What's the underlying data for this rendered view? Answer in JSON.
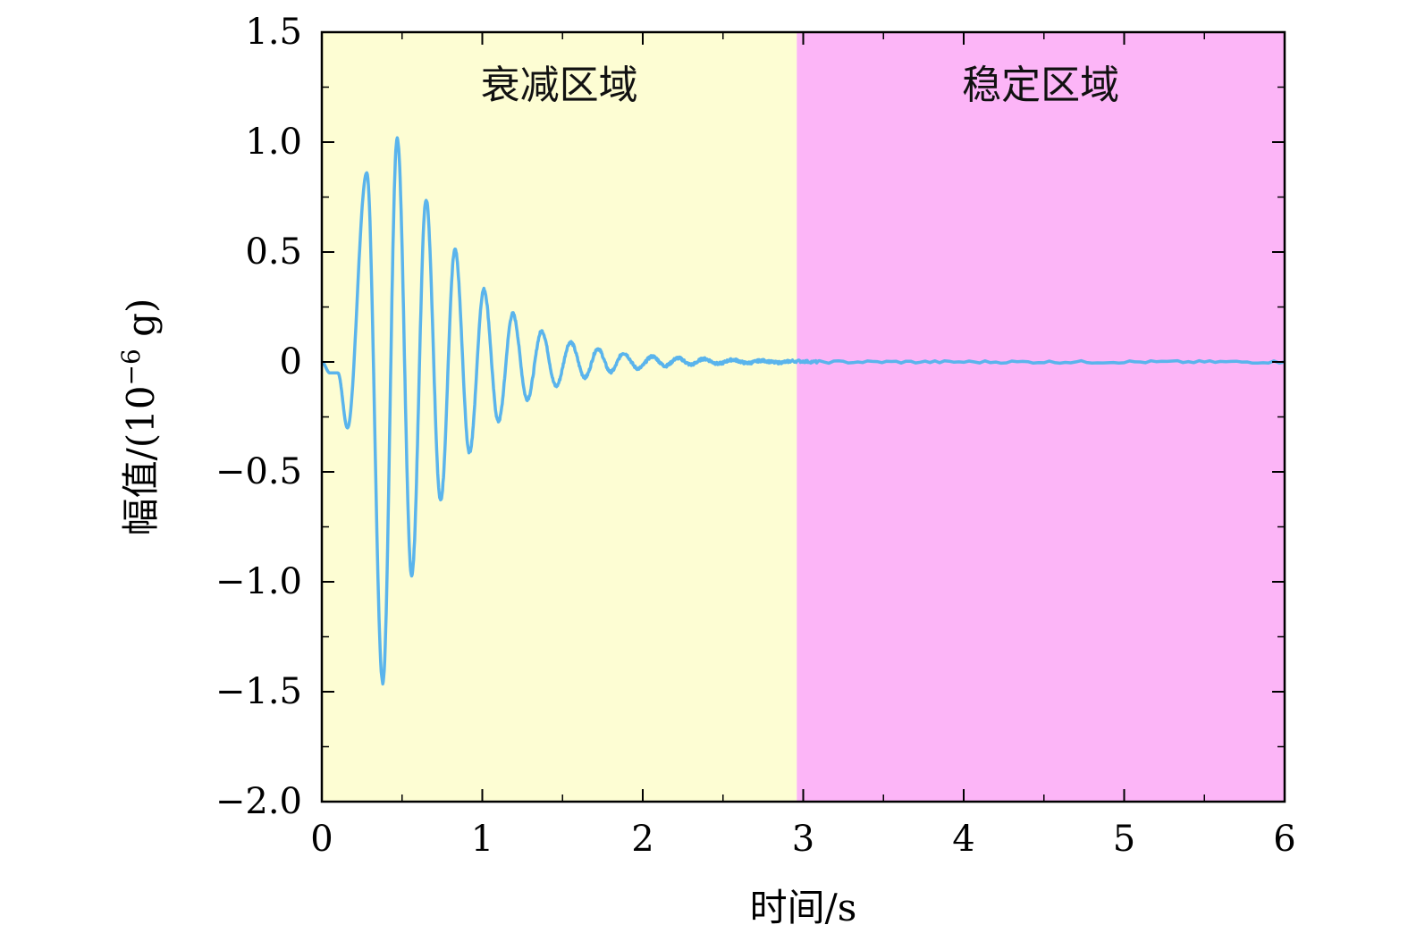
{
  "chart_data": {
    "type": "line",
    "xlabel": "时间/s",
    "ylabel_main": "幅值/(10",
    "ylabel_exp": "−6",
    "ylabel_unit": " g)",
    "xlim": [
      0,
      6
    ],
    "ylim": [
      -2.0,
      1.5
    ],
    "x_ticks": [
      0,
      1,
      2,
      3,
      4,
      5,
      6
    ],
    "x_tick_labels": [
      "0",
      "1",
      "2",
      "3",
      "4",
      "5",
      "6"
    ],
    "y_ticks": [
      1.5,
      1.0,
      0.5,
      0,
      -0.5,
      -1.0,
      -1.5,
      -2.0
    ],
    "y_tick_labels": [
      "1.5",
      "1.0",
      "0.5",
      "0",
      "−0.5",
      "−1.0",
      "−1.5",
      "−2.0"
    ],
    "grid": false,
    "regions": [
      {
        "label": "衰减区域",
        "x_start": 0,
        "x_end": 2.96,
        "color": "#fdfdd3"
      },
      {
        "label": "稳定区域",
        "x_start": 2.96,
        "x_end": 6,
        "color": "#fcb5f7"
      }
    ],
    "series": [
      {
        "color": "#5ab4ec",
        "points": [
          [
            0.0,
            0.0
          ],
          [
            0.05,
            -0.05
          ],
          [
            0.1,
            -0.05
          ],
          [
            0.16,
            -0.3
          ],
          [
            0.28,
            0.86
          ],
          [
            0.38,
            -1.46
          ],
          [
            0.47,
            1.02
          ],
          [
            0.56,
            -0.97
          ],
          [
            0.65,
            0.74
          ],
          [
            0.74,
            -0.63
          ],
          [
            0.83,
            0.51
          ],
          [
            0.92,
            -0.41
          ],
          [
            1.01,
            0.33
          ],
          [
            1.1,
            -0.27
          ],
          [
            1.19,
            0.22
          ],
          [
            1.28,
            -0.17
          ],
          [
            1.37,
            0.14
          ],
          [
            1.46,
            -0.11
          ],
          [
            1.55,
            0.09
          ],
          [
            1.64,
            -0.07
          ],
          [
            1.72,
            0.06
          ],
          [
            1.8,
            -0.045
          ],
          [
            1.88,
            0.04
          ],
          [
            1.97,
            -0.03
          ],
          [
            2.06,
            0.025
          ],
          [
            2.14,
            -0.018
          ],
          [
            2.22,
            0.018
          ],
          [
            2.3,
            -0.012
          ],
          [
            2.38,
            0.014
          ],
          [
            2.47,
            -0.008
          ],
          [
            2.56,
            0.01
          ],
          [
            2.65,
            -0.005
          ],
          [
            2.74,
            0.006
          ],
          [
            2.84,
            -0.003
          ],
          [
            2.94,
            0.004
          ],
          [
            3.1,
            0.0
          ],
          [
            4.0,
            0.0
          ],
          [
            5.0,
            0.0
          ],
          [
            6.0,
            0.0
          ]
        ]
      }
    ]
  }
}
